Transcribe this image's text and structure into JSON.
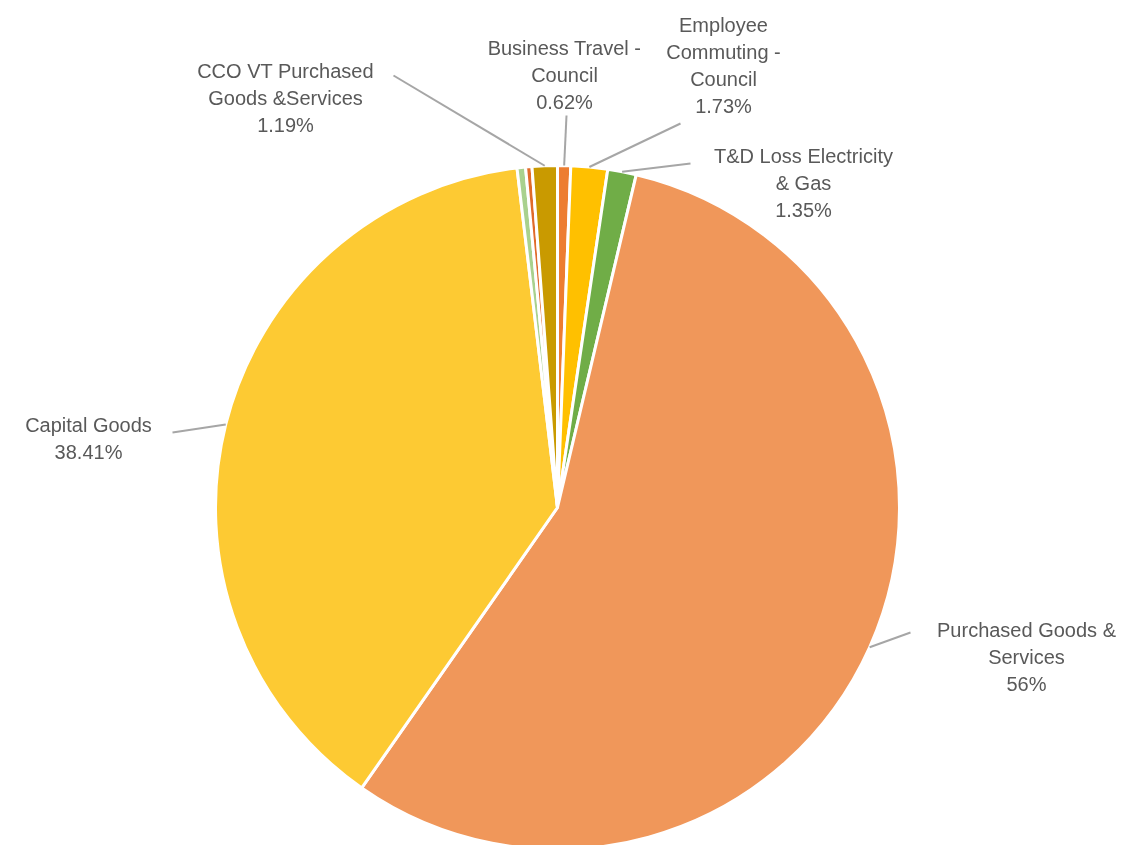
{
  "chart_data": {
    "type": "pie",
    "categories": [
      "Business Travel - Council",
      "Employee Commuting - Council",
      "T&D Loss Electricity & Gas",
      "Purchased Goods & Services",
      "Capital Goods",
      null,
      null,
      "CCO VT Purchased Goods &Services"
    ],
    "values": [
      0.62,
      1.73,
      1.35,
      56,
      38.41,
      0.4,
      0.3,
      1.19
    ],
    "colors": [
      "#ed7d31",
      "#ffc000",
      "#70ad47",
      "#f0975a",
      "#fdca33",
      "#a9d18e",
      "#e06b2a",
      "#c99a00"
    ],
    "value_labels": [
      "0.62%",
      "1.73%",
      "1.35%",
      "56%",
      "38.41%",
      null,
      null,
      "1.19%"
    ]
  }
}
